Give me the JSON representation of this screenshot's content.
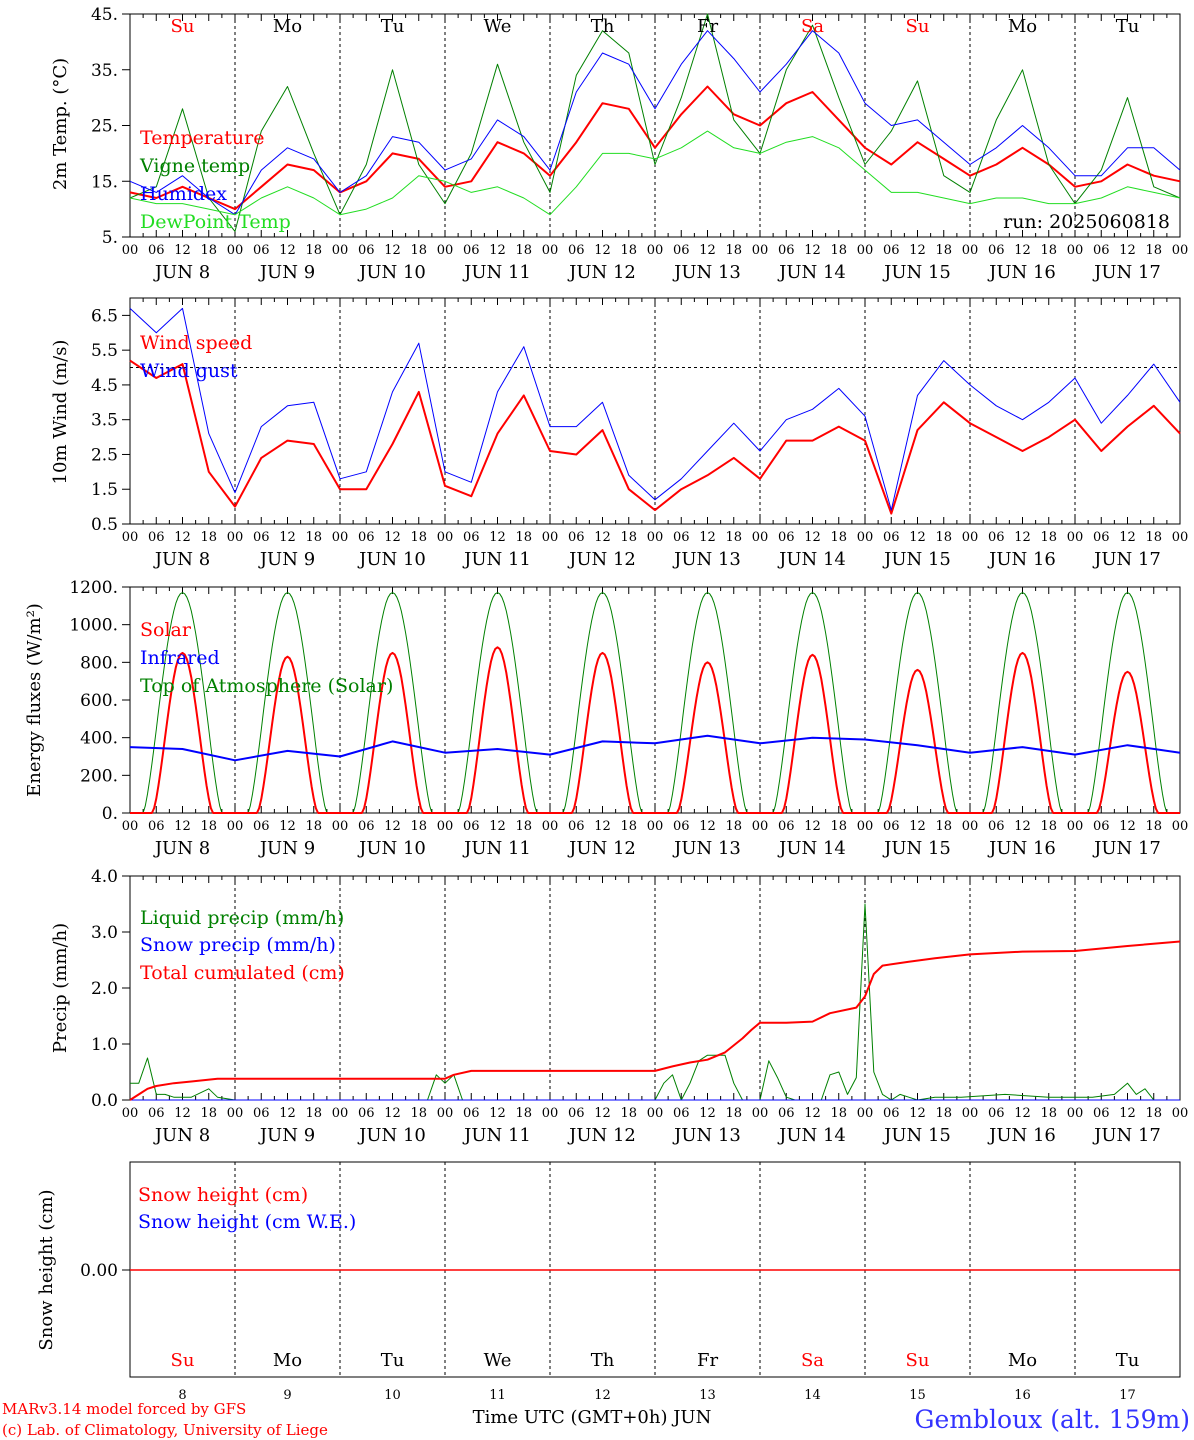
{
  "colors": {
    "red": "#ff0000",
    "green": "#008000",
    "blue": "#0000ff",
    "lime": "#22dd22",
    "black": "#000000",
    "footer_blue": "#3333ff"
  },
  "hour_ticks": [
    "00",
    "06",
    "12",
    "18"
  ],
  "end_tick": "00",
  "dates": [
    "JUN 8",
    "JUN 9",
    "JUN 10",
    "JUN 11",
    "JUN 12",
    "JUN 13",
    "JUN 14",
    "JUN 15",
    "JUN 16",
    "JUN 17"
  ],
  "weekdays": [
    {
      "label": "Su",
      "color": "#ff0000"
    },
    {
      "label": "Mo",
      "color": "#000000"
    },
    {
      "label": "Tu",
      "color": "#000000"
    },
    {
      "label": "We",
      "color": "#000000"
    },
    {
      "label": "Th",
      "color": "#000000"
    },
    {
      "label": "Fr",
      "color": "#000000"
    },
    {
      "label": "Sa",
      "color": "#ff0000"
    },
    {
      "label": "Su",
      "color": "#ff0000"
    },
    {
      "label": "Mo",
      "color": "#000000"
    },
    {
      "label": "Tu",
      "color": "#000000"
    }
  ],
  "bottom_day_numbers": [
    "8",
    "9",
    "10",
    "11",
    "12",
    "13",
    "14",
    "15",
    "16",
    "17"
  ],
  "run_label": "run: 2025060818",
  "footer": {
    "model": "MARv3.14 model forced by GFS",
    "credit": "(c) Lab. of Climatology, University of Liege",
    "xlabel": "Time UTC (GMT+0h) JUN",
    "station": "Gembloux (alt. 159m)"
  },
  "chart_data": [
    {
      "type": "line",
      "ylabel": "2m Temp. (°C)",
      "ylim": [
        5,
        45
      ],
      "yticks": [
        "45.",
        "35.",
        "25.",
        "15.",
        "5."
      ],
      "ytick_values": [
        45,
        35,
        25,
        15,
        5
      ],
      "x_hours": [
        0,
        6,
        12,
        18,
        24,
        30,
        36,
        42,
        48,
        54,
        60,
        66,
        72,
        78,
        84,
        90,
        96,
        102,
        108,
        114,
        120,
        126,
        132,
        138,
        144,
        150,
        156,
        162,
        168,
        174,
        180,
        186,
        192,
        198,
        204,
        210,
        216,
        222,
        228,
        234,
        240
      ],
      "series": [
        {
          "name": "Temperature",
          "color": "#ff0000",
          "width": 2,
          "values": [
            13,
            12,
            14,
            12,
            10,
            14,
            18,
            17,
            13,
            15,
            20,
            19,
            14,
            15,
            22,
            20,
            16,
            22,
            29,
            28,
            21,
            27,
            32,
            27,
            25,
            29,
            31,
            26,
            21,
            18,
            22,
            19,
            16,
            18,
            21,
            18,
            14,
            15,
            18,
            16,
            15
          ]
        },
        {
          "name": "Vigne temp",
          "color": "#008000",
          "width": 1,
          "values": [
            12,
            14,
            28,
            12,
            6,
            24,
            32,
            20,
            9,
            18,
            35,
            18,
            11,
            20,
            36,
            22,
            13,
            34,
            42,
            38,
            18,
            30,
            45,
            26,
            20,
            35,
            43,
            30,
            18,
            24,
            33,
            16,
            13,
            26,
            35,
            18,
            11,
            17,
            30,
            14,
            12
          ]
        },
        {
          "name": "Humidex",
          "color": "#0000ff",
          "width": 1,
          "values": [
            15,
            13,
            16,
            12,
            9,
            17,
            21,
            19,
            13,
            16,
            23,
            22,
            17,
            19,
            26,
            23,
            17,
            31,
            38,
            36,
            28,
            36,
            42,
            37,
            31,
            36,
            42,
            38,
            29,
            25,
            26,
            22,
            18,
            21,
            25,
            21,
            16,
            16,
            21,
            21,
            17
          ]
        },
        {
          "name": "DewPoint Temp",
          "color": "#22dd22",
          "width": 1,
          "values": [
            12,
            11,
            11,
            10,
            9,
            12,
            14,
            12,
            9,
            10,
            12,
            16,
            15,
            13,
            14,
            12,
            9,
            14,
            20,
            20,
            19,
            21,
            24,
            21,
            20,
            22,
            23,
            21,
            17,
            13,
            13,
            12,
            11,
            12,
            12,
            11,
            11,
            12,
            14,
            13,
            12
          ]
        }
      ]
    },
    {
      "type": "line",
      "ylabel": "10m Wind (m/s)",
      "ylim": [
        0.5,
        7.0
      ],
      "yticks": [
        "6.5",
        "5.5",
        "4.5",
        "3.5",
        "2.5",
        "1.5",
        "0.5"
      ],
      "ytick_values": [
        6.5,
        5.5,
        4.5,
        3.5,
        2.5,
        1.5,
        0.5
      ],
      "reference_line": 5.0,
      "x_hours": [
        0,
        6,
        12,
        18,
        24,
        30,
        36,
        42,
        48,
        54,
        60,
        66,
        72,
        78,
        84,
        90,
        96,
        102,
        108,
        114,
        120,
        126,
        132,
        138,
        144,
        150,
        156,
        162,
        168,
        174,
        180,
        186,
        192,
        198,
        204,
        210,
        216,
        222,
        228,
        234,
        240
      ],
      "series": [
        {
          "name": "Wind speed",
          "color": "#ff0000",
          "width": 2,
          "values": [
            5.2,
            4.7,
            5.1,
            2.0,
            1.0,
            2.4,
            2.9,
            2.8,
            1.5,
            1.5,
            2.8,
            4.3,
            1.6,
            1.3,
            3.1,
            4.2,
            2.6,
            2.5,
            3.2,
            1.5,
            0.9,
            1.5,
            1.9,
            2.4,
            1.8,
            2.9,
            2.9,
            3.3,
            2.9,
            0.8,
            3.2,
            4.0,
            3.4,
            3.0,
            2.6,
            3.0,
            3.5,
            2.6,
            3.3,
            3.9,
            3.1
          ]
        },
        {
          "name": "Wind gust",
          "color": "#0000ff",
          "width": 1,
          "values": [
            6.7,
            6.0,
            6.7,
            3.1,
            1.4,
            3.3,
            3.9,
            4.0,
            1.8,
            2.0,
            4.3,
            5.7,
            2.0,
            1.7,
            4.3,
            5.6,
            3.3,
            3.3,
            4.0,
            1.9,
            1.2,
            1.8,
            2.6,
            3.4,
            2.6,
            3.5,
            3.8,
            4.4,
            3.6,
            0.9,
            4.2,
            5.2,
            4.5,
            3.9,
            3.5,
            4.0,
            4.7,
            3.4,
            4.2,
            5.1,
            4.0
          ]
        }
      ]
    },
    {
      "type": "line",
      "ylabel": "Energy fluxes (W/m²)",
      "ylim": [
        0,
        1200
      ],
      "yticks": [
        "1200.",
        "1000.",
        "800.",
        "600.",
        "400.",
        "200.",
        "0."
      ],
      "ytick_values": [
        1200,
        1000,
        800,
        600,
        400,
        200,
        0
      ],
      "series": [
        {
          "name": "Solar",
          "color": "#ff0000",
          "width": 2,
          "day_peaks": [
            850,
            830,
            850,
            880,
            850,
            800,
            840,
            760,
            850,
            750
          ]
        },
        {
          "name": "Infrared",
          "color": "#0000ff",
          "width": 2,
          "x_hours": [
            0,
            12,
            24,
            36,
            48,
            60,
            72,
            84,
            96,
            108,
            120,
            132,
            144,
            156,
            168,
            180,
            192,
            204,
            216,
            228,
            240
          ],
          "values": [
            350,
            340,
            280,
            330,
            300,
            380,
            320,
            340,
            310,
            380,
            370,
            410,
            370,
            400,
            390,
            360,
            320,
            350,
            310,
            360,
            320
          ]
        },
        {
          "name": "Top of Atmosphere (Solar)",
          "color": "#008000",
          "width": 1,
          "day_peak": 1170
        }
      ]
    },
    {
      "type": "line",
      "ylabel": "Precip (mm/h)",
      "ylim": [
        0,
        4.0
      ],
      "yticks": [
        "4.0",
        "3.0",
        "2.0",
        "1.0",
        "0.0"
      ],
      "ytick_values": [
        4.0,
        3.0,
        2.0,
        1.0,
        0.0
      ],
      "series": [
        {
          "name": "Liquid precip (mm/h)",
          "color": "#008000",
          "width": 1,
          "x_hours": [
            0,
            2,
            4,
            6,
            8,
            10,
            14,
            18,
            20,
            24,
            48,
            68,
            70,
            72,
            74,
            76,
            78,
            120,
            122,
            124,
            126,
            128,
            130,
            132,
            134,
            136,
            138,
            140,
            142,
            144,
            146,
            148,
            150,
            152,
            154,
            156,
            158,
            160,
            162,
            164,
            166,
            168,
            170,
            172,
            174,
            176,
            178,
            180,
            184,
            190,
            200,
            210,
            220,
            225,
            228,
            230,
            232,
            234,
            236,
            240
          ],
          "values": [
            0.3,
            0.3,
            0.75,
            0.1,
            0.1,
            0.05,
            0.05,
            0.2,
            0.05,
            0.0,
            0.0,
            0.0,
            0.45,
            0.3,
            0.45,
            0.0,
            0.0,
            0.0,
            0.3,
            0.45,
            0.0,
            0.3,
            0.7,
            0.8,
            0.8,
            0.8,
            0.3,
            0.0,
            0.0,
            0.0,
            0.7,
            0.4,
            0.05,
            0.0,
            0.0,
            0.0,
            0.0,
            0.45,
            0.5,
            0.1,
            0.4,
            3.5,
            0.5,
            0.1,
            0.0,
            0.1,
            0.05,
            0.0,
            0.05,
            0.05,
            0.1,
            0.05,
            0.05,
            0.1,
            0.3,
            0.1,
            0.2,
            0.0,
            0.0,
            0.0
          ]
        },
        {
          "name": "Snow precip (mm/h)",
          "color": "#0000ff",
          "width": 1,
          "x_hours": [
            0,
            240
          ],
          "values": [
            0.0,
            0.0
          ]
        },
        {
          "name": "Total cumulated (cm)",
          "color": "#ff0000",
          "width": 2,
          "x_hours": [
            0,
            2,
            4,
            6,
            10,
            14,
            20,
            24,
            48,
            72,
            74,
            78,
            96,
            120,
            124,
            128,
            132,
            136,
            140,
            142,
            144,
            150,
            156,
            160,
            166,
            168,
            170,
            172,
            178,
            184,
            192,
            204,
            216,
            228,
            240
          ],
          "values": [
            0.0,
            0.1,
            0.2,
            0.25,
            0.3,
            0.33,
            0.38,
            0.38,
            0.38,
            0.38,
            0.45,
            0.52,
            0.52,
            0.52,
            0.6,
            0.67,
            0.72,
            0.85,
            1.1,
            1.25,
            1.38,
            1.38,
            1.4,
            1.55,
            1.65,
            1.85,
            2.25,
            2.4,
            2.47,
            2.53,
            2.6,
            2.65,
            2.66,
            2.75,
            2.83
          ]
        }
      ]
    },
    {
      "type": "line",
      "ylabel": "Snow height (cm)",
      "yticks": [
        "0.00"
      ],
      "ytick_values": [
        0
      ],
      "series": [
        {
          "name": "Snow height (cm)",
          "color": "#ff0000",
          "width": 1,
          "values": [
            0,
            0
          ]
        },
        {
          "name": "Snow height (cm W.E.)",
          "color": "#0000ff",
          "width": 1,
          "values": [
            0,
            0
          ]
        }
      ]
    }
  ]
}
